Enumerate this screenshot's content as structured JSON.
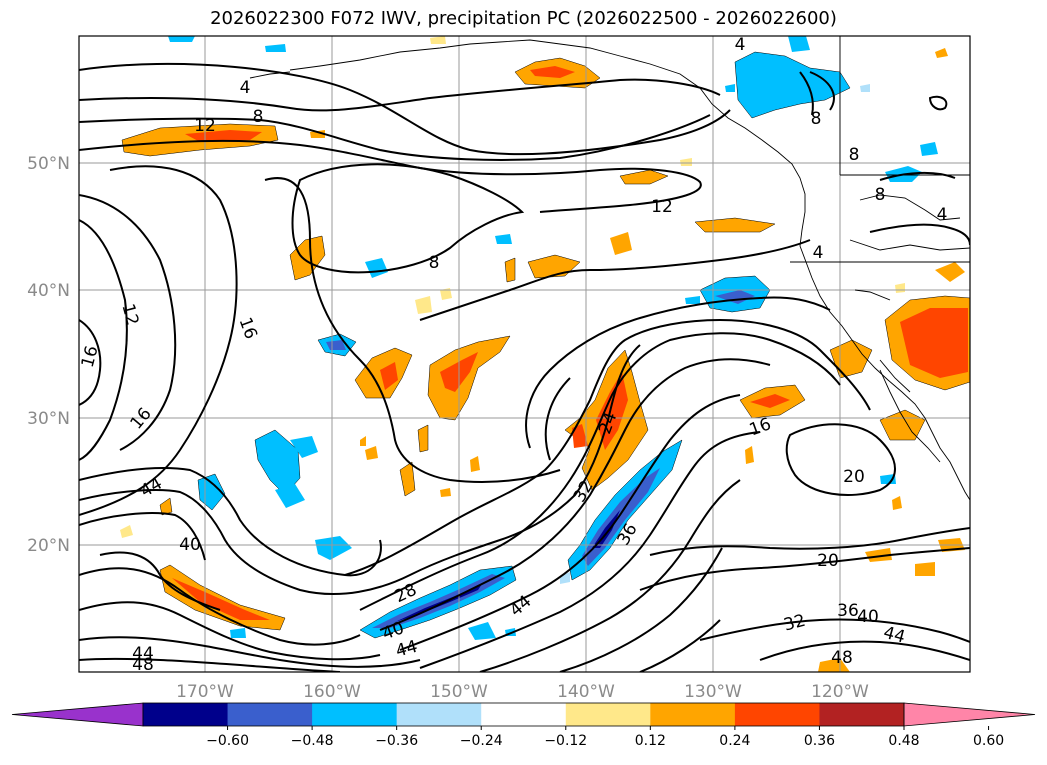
{
  "title": "2026022300 F072 IWV, precipitation PC (2026022500 - 2026022600)",
  "map": {
    "lat_labels": [
      "50°N",
      "40°N",
      "30°N",
      "20°N"
    ],
    "lon_labels": [
      "170°W",
      "160°W",
      "150°W",
      "140°W",
      "130°W",
      "120°W"
    ],
    "lat_values": [
      50,
      40,
      30,
      20
    ],
    "lon_values": [
      -170,
      -160,
      -150,
      -140,
      -130,
      -120
    ],
    "iwv_contour_labels": [
      {
        "text": "4"
      },
      {
        "text": "4"
      },
      {
        "text": "8"
      },
      {
        "text": "12"
      },
      {
        "text": "8"
      },
      {
        "text": "12"
      },
      {
        "text": "16"
      },
      {
        "text": "16"
      },
      {
        "text": "12"
      },
      {
        "text": "16"
      },
      {
        "text": "44"
      },
      {
        "text": "40"
      },
      {
        "text": "28"
      },
      {
        "text": "40"
      },
      {
        "text": "44"
      },
      {
        "text": "44"
      },
      {
        "text": "48"
      },
      {
        "text": "44"
      },
      {
        "text": "32"
      },
      {
        "text": "36"
      },
      {
        "text": "24"
      },
      {
        "text": "16"
      },
      {
        "text": "20"
      },
      {
        "text": "20"
      },
      {
        "text": "32"
      },
      {
        "text": "36"
      },
      {
        "text": "40"
      },
      {
        "text": "44"
      },
      {
        "text": "48"
      },
      {
        "text": "8"
      },
      {
        "text": "8"
      },
      {
        "text": "4"
      },
      {
        "text": "4"
      },
      {
        "text": "8"
      }
    ]
  },
  "colorbar": {
    "ticks": [
      "−0.60",
      "−0.48",
      "−0.36",
      "−0.24",
      "−0.12",
      "0.12",
      "0.24",
      "0.36",
      "0.48",
      "0.60"
    ],
    "colors": [
      "#9932cc",
      "#00008b",
      "#3a5fcd",
      "#00bfff",
      "#b0e0fa",
      "#ffffff",
      "#ffe88a",
      "#ffa500",
      "#ff4500",
      "#b22222",
      "#ff85a8"
    ]
  },
  "colors": {
    "precip_pos_low": "#ffe88a",
    "precip_pos_mid": "#ffa500",
    "precip_pos_high": "#ff4500",
    "precip_neg_low": "#b0e0fa",
    "precip_neg_mid": "#00bfff",
    "precip_neg_high": "#3a5fcd",
    "grid": "#9a9a9a",
    "contour": "#000000"
  }
}
